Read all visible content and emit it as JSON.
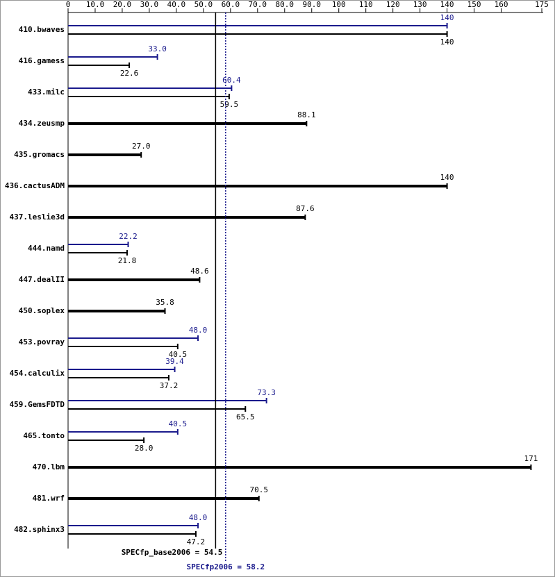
{
  "chart_data": {
    "type": "hbar_pair",
    "categories": [
      "410.bwaves",
      "416.gamess",
      "433.milc",
      "434.zeusmp",
      "435.gromacs",
      "436.cactusADM",
      "437.leslie3d",
      "444.namd",
      "447.dealII",
      "450.soplex",
      "453.povray",
      "454.calculix",
      "459.GemsFDTD",
      "465.tonto",
      "470.lbm",
      "481.wrf",
      "482.sphinx3"
    ],
    "series": [
      {
        "color": "#000000",
        "values": [
          140,
          22.6,
          59.5,
          88.1,
          27.0,
          140,
          87.6,
          21.8,
          48.6,
          35.8,
          40.5,
          37.2,
          65.5,
          28.0,
          171,
          70.5,
          47.2
        ],
        "value_labels": [
          "140",
          "22.6",
          "59.5",
          "88.1",
          "27.0",
          "140",
          "87.6",
          "21.8",
          "48.6",
          "35.8",
          "40.5",
          "37.2",
          "65.5",
          "28.0",
          "171",
          "70.5",
          "47.2"
        ]
      },
      {
        "color": "#1a1a8c",
        "values": [
          140,
          33.0,
          60.4,
          null,
          null,
          null,
          null,
          22.2,
          null,
          null,
          48.0,
          39.4,
          73.3,
          40.5,
          null,
          null,
          48.0
        ],
        "value_labels": [
          "140",
          "33.0",
          "60.4",
          null,
          null,
          null,
          null,
          "22.2",
          null,
          null,
          "48.0",
          "39.4",
          "73.3",
          "40.5",
          null,
          null,
          "48.0"
        ]
      }
    ],
    "xlim": [
      0,
      175
    ],
    "xticks": [
      0,
      {
        "value": 10,
        "label": "10.0"
      },
      {
        "value": 20,
        "label": "20.0"
      },
      {
        "value": 30,
        "label": "30.0"
      },
      {
        "value": 40,
        "label": "40.0"
      },
      {
        "value": 50,
        "label": "50.0"
      },
      {
        "value": 60,
        "label": "60.0"
      },
      {
        "value": 70,
        "label": "70.0"
      },
      {
        "value": 80,
        "label": "80.0"
      },
      {
        "value": 90,
        "label": "90.0"
      },
      100,
      110,
      120,
      130,
      140,
      150,
      160,
      175
    ],
    "reference_lines": [
      {
        "label": "SPECfp_base2006 = 54.5",
        "value": 54.5,
        "color": "#000000",
        "style": "solid"
      },
      {
        "label": "SPECfp2006 = 58.2",
        "value": 58.2,
        "color": "#1a1a8c",
        "style": "dotted"
      }
    ]
  }
}
